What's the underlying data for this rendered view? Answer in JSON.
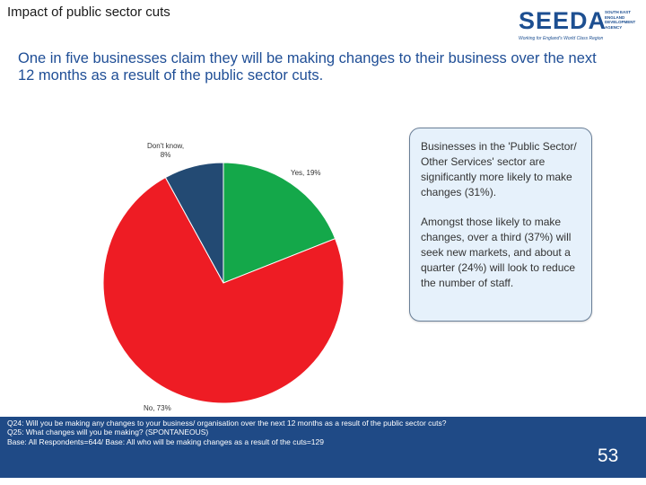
{
  "slide": {
    "title": "Impact of public sector cuts",
    "page_number": "53"
  },
  "logo": {
    "word": "SEEDA",
    "side_text": "SOUTH EAST\nENGLAND\nDEVELOPMENT\nAGENCY",
    "tagline": "Working for England's World Class Region"
  },
  "headline": "One in five businesses claim they will be making changes to their business over the next 12 months as a result of the public sector cuts.",
  "chart_data": {
    "type": "pie",
    "slices": [
      {
        "label": "Yes, 19%",
        "value": 19,
        "color": "#14a84a"
      },
      {
        "label": "No, 73%",
        "value": 73,
        "color": "#ee1c24"
      },
      {
        "label": "Don't know,\n8%",
        "value": 8,
        "color": "#234a73"
      }
    ],
    "start": "12 o'clock, clockwise"
  },
  "callout": {
    "paragraphs": [
      "Businesses in the 'Public Sector/ Other Services' sector are significantly more likely to make changes (31%).",
      "Amongst those likely to make changes, over a third (37%) will seek new markets, and about a quarter (24%) will look to reduce the number of staff."
    ]
  },
  "footnote": {
    "lines": [
      "Q24: Will you be making any changes to your business/ organisation over the next 12 months as a result of the public sector cuts?",
      "Q25: What changes will you be making? (SPONTANEOUS)",
      "Base: All Respondents=644/ Base: All who will be making changes as a result of the cuts=129"
    ]
  }
}
